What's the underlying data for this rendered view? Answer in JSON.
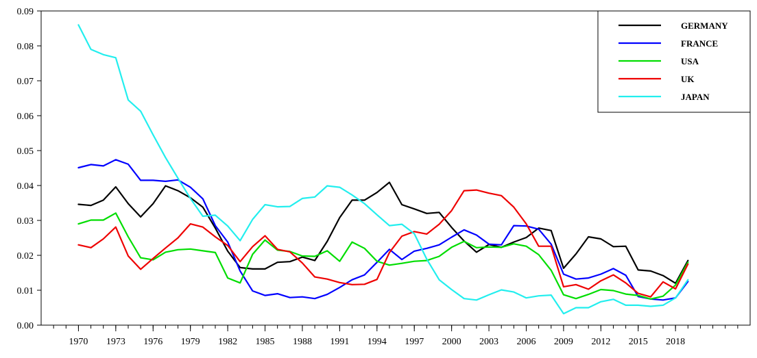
{
  "chart_data": {
    "type": "line",
    "title": "",
    "xlabel": "",
    "ylabel": "",
    "xlim": [
      1967,
      2024
    ],
    "ylim": [
      0,
      0.09
    ],
    "y_ticks": [
      "0.00",
      "0.01",
      "0.02",
      "0.03",
      "0.04",
      "0.05",
      "0.06",
      "0.07",
      "0.08",
      "0.09"
    ],
    "x_tick_labels": [
      "1970",
      "1973",
      "1976",
      "1979",
      "1982",
      "1985",
      "1988",
      "1991",
      "1994",
      "1997",
      "2000",
      "2003",
      "2006",
      "2009",
      "2012",
      "2015",
      "2018"
    ],
    "x_tick_years": [
      1970,
      1973,
      1976,
      1979,
      1982,
      1985,
      1988,
      1991,
      1994,
      1997,
      2000,
      2003,
      2006,
      2009,
      2012,
      2015,
      2018
    ],
    "grid": false,
    "legend_position": "top-right",
    "x": [
      1970,
      1971,
      1972,
      1973,
      1974,
      1975,
      1976,
      1977,
      1978,
      1979,
      1980,
      1981,
      1982,
      1983,
      1984,
      1985,
      1986,
      1987,
      1988,
      1989,
      1990,
      1991,
      1992,
      1993,
      1994,
      1995,
      1996,
      1997,
      1998,
      1999,
      2000,
      2001,
      2002,
      2003,
      2004,
      2005,
      2006,
      2007,
      2008,
      2009,
      2010,
      2011,
      2012,
      2013,
      2014,
      2015,
      2016,
      2017,
      2018,
      2019
    ],
    "series": [
      {
        "name": "GERMANY",
        "color": "#000000",
        "values": [
          0.0346,
          0.0343,
          0.0358,
          0.0396,
          0.0348,
          0.031,
          0.0348,
          0.0399,
          0.0385,
          0.0365,
          0.0338,
          0.0278,
          0.0212,
          0.0165,
          0.0161,
          0.0161,
          0.018,
          0.0182,
          0.0195,
          0.0185,
          0.024,
          0.0308,
          0.0358,
          0.0358,
          0.038,
          0.0409,
          0.0345,
          0.0333,
          0.032,
          0.0323,
          0.028,
          0.0241,
          0.0209,
          0.0231,
          0.0223,
          0.0238,
          0.0251,
          0.0278,
          0.0271,
          0.0163,
          0.0204,
          0.0253,
          0.0247,
          0.0225,
          0.0226,
          0.0158,
          0.0155,
          0.0142,
          0.012,
          0.0185
        ]
      },
      {
        "name": "FRANCE",
        "color": "#0000ff",
        "values": [
          0.0451,
          0.046,
          0.0456,
          0.0474,
          0.0461,
          0.0415,
          0.0415,
          0.0412,
          0.0416,
          0.0395,
          0.0362,
          0.0285,
          0.0238,
          0.0155,
          0.0098,
          0.0085,
          0.009,
          0.0079,
          0.0081,
          0.0076,
          0.0088,
          0.0108,
          0.013,
          0.0144,
          0.018,
          0.0217,
          0.0188,
          0.0212,
          0.022,
          0.023,
          0.0252,
          0.0273,
          0.0258,
          0.0232,
          0.023,
          0.0285,
          0.0284,
          0.0275,
          0.0232,
          0.0146,
          0.0132,
          0.0135,
          0.0146,
          0.0162,
          0.0143,
          0.0082,
          0.0075,
          0.0072,
          0.0078,
          0.0125
        ]
      },
      {
        "name": "USA",
        "color": "#00dd00",
        "values": [
          0.029,
          0.0301,
          0.0301,
          0.0321,
          0.0253,
          0.0193,
          0.0187,
          0.0209,
          0.0216,
          0.0218,
          0.0213,
          0.0208,
          0.0135,
          0.0121,
          0.0203,
          0.0244,
          0.0215,
          0.0211,
          0.0198,
          0.0197,
          0.0213,
          0.0183,
          0.0238,
          0.022,
          0.0183,
          0.0172,
          0.0177,
          0.0183,
          0.0185,
          0.0197,
          0.0223,
          0.024,
          0.0222,
          0.0224,
          0.0223,
          0.0233,
          0.0226,
          0.0202,
          0.0157,
          0.0087,
          0.0076,
          0.0088,
          0.0102,
          0.0099,
          0.0089,
          0.0085,
          0.0075,
          0.0083,
          0.0115,
          0.018
        ]
      },
      {
        "name": "UK",
        "color": "#ee0000",
        "values": [
          0.023,
          0.0222,
          0.0247,
          0.0281,
          0.0198,
          0.016,
          0.0191,
          0.0221,
          0.025,
          0.029,
          0.0281,
          0.0253,
          0.0228,
          0.0182,
          0.0225,
          0.0256,
          0.0217,
          0.021,
          0.0178,
          0.0138,
          0.0132,
          0.0122,
          0.0116,
          0.0117,
          0.0131,
          0.0208,
          0.0255,
          0.0268,
          0.0261,
          0.0289,
          0.0328,
          0.0385,
          0.0387,
          0.0378,
          0.0371,
          0.0338,
          0.029,
          0.0226,
          0.0226,
          0.011,
          0.0116,
          0.0103,
          0.0127,
          0.0144,
          0.0121,
          0.0091,
          0.0081,
          0.0124,
          0.0104,
          0.0175
        ]
      },
      {
        "name": "JAPAN",
        "color": "#22eeee",
        "values": [
          0.086,
          0.079,
          0.0775,
          0.0766,
          0.0645,
          0.0613,
          0.0545,
          0.048,
          0.0421,
          0.0363,
          0.0312,
          0.0315,
          0.0284,
          0.0242,
          0.0303,
          0.0345,
          0.0339,
          0.034,
          0.0363,
          0.0367,
          0.0399,
          0.0395,
          0.0373,
          0.0348,
          0.0316,
          0.0285,
          0.0289,
          0.0262,
          0.0189,
          0.013,
          0.0102,
          0.0076,
          0.0072,
          0.0087,
          0.0101,
          0.0095,
          0.0078,
          0.0084,
          0.0086,
          0.0033,
          0.005,
          0.005,
          0.0067,
          0.0074,
          0.0057,
          0.0057,
          0.0054,
          0.0057,
          0.0078,
          0.013
        ]
      }
    ]
  }
}
